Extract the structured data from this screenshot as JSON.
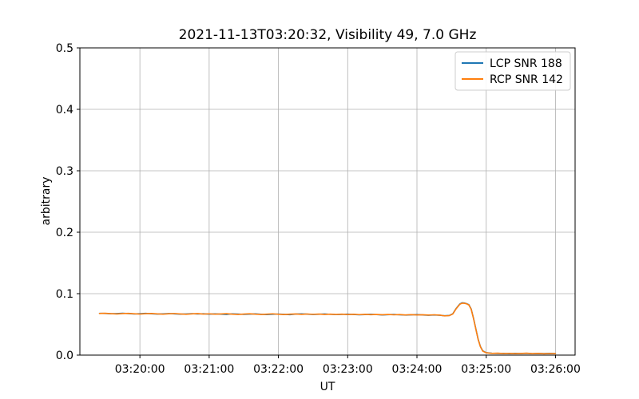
{
  "chart_data": {
    "type": "line",
    "title": "2021-11-13T03:20:32, Visibility 49, 7.0 GHz",
    "xlabel": "UT",
    "ylabel": "arbitrary",
    "ylim": [
      0.0,
      0.5
    ],
    "y_ticks": [
      {
        "v": 0.0,
        "label": "0.0"
      },
      {
        "v": 0.1,
        "label": "0.1"
      },
      {
        "v": 0.2,
        "label": "0.2"
      },
      {
        "v": 0.3,
        "label": "0.3"
      },
      {
        "v": 0.4,
        "label": "0.4"
      },
      {
        "v": 0.5,
        "label": "0.5"
      }
    ],
    "x_time_unit": "seconds since 03:20:00 UT",
    "xlim_seconds": [
      -52,
      377
    ],
    "x_ticks": [
      {
        "t": 0,
        "label": "03:20:00"
      },
      {
        "t": 60,
        "label": "03:21:00"
      },
      {
        "t": 120,
        "label": "03:22:00"
      },
      {
        "t": 180,
        "label": "03:23:00"
      },
      {
        "t": 240,
        "label": "03:24:00"
      },
      {
        "t": 300,
        "label": "03:25:00"
      },
      {
        "t": 360,
        "label": "03:26:00"
      }
    ],
    "grid": true,
    "legend_position": "upper right",
    "legend": {
      "entries": [
        {
          "label": "LCP SNR 188",
          "color": "#1f77b4"
        },
        {
          "label": "RCP SNR 142",
          "color": "#ff7f0e"
        }
      ]
    },
    "colors": {
      "grid": "#b0b0b0",
      "spine": "#000000",
      "background": "#ffffff",
      "lcp": "#1f77b4",
      "rcp": "#ff7f0e"
    },
    "x": [
      -35,
      -30,
      -25,
      -20,
      -15,
      -10,
      -5,
      0,
      5,
      10,
      15,
      20,
      25,
      30,
      35,
      40,
      45,
      50,
      55,
      60,
      65,
      70,
      75,
      80,
      85,
      90,
      95,
      100,
      105,
      110,
      115,
      120,
      125,
      130,
      135,
      140,
      145,
      150,
      155,
      160,
      165,
      170,
      175,
      180,
      185,
      190,
      195,
      200,
      205,
      210,
      215,
      220,
      225,
      230,
      235,
      240,
      245,
      250,
      255,
      260,
      264,
      268,
      271,
      274,
      277,
      279,
      281,
      283,
      285,
      287,
      289,
      291,
      293,
      295,
      297,
      300,
      305,
      310,
      315,
      320,
      325,
      330,
      335,
      340,
      345,
      350,
      355,
      360
    ],
    "series": [
      {
        "name": "LCP SNR 188",
        "color": "#1f77b4",
        "y": [
          0.068,
          0.0678,
          0.0673,
          0.0677,
          0.0682,
          0.0676,
          0.067,
          0.0675,
          0.0679,
          0.0673,
          0.0668,
          0.0672,
          0.0677,
          0.0671,
          0.0666,
          0.067,
          0.0675,
          0.0669,
          0.0673,
          0.0667,
          0.0671,
          0.0666,
          0.0661,
          0.0672,
          0.0668,
          0.0663,
          0.0667,
          0.0671,
          0.0665,
          0.066,
          0.0664,
          0.0669,
          0.0663,
          0.0658,
          0.0668,
          0.0672,
          0.0666,
          0.0661,
          0.0665,
          0.067,
          0.0664,
          0.0659,
          0.0663,
          0.0667,
          0.0661,
          0.0656,
          0.066,
          0.0665,
          0.0659,
          0.0654,
          0.0658,
          0.0662,
          0.0656,
          0.0651,
          0.0655,
          0.066,
          0.0654,
          0.0649,
          0.0653,
          0.0648,
          0.064,
          0.0645,
          0.0672,
          0.076,
          0.083,
          0.0852,
          0.0848,
          0.0838,
          0.082,
          0.075,
          0.06,
          0.043,
          0.026,
          0.014,
          0.007,
          0.004,
          0.003,
          0.0026,
          0.0029,
          0.0024,
          0.0028,
          0.0025,
          0.0029,
          0.0023,
          0.0027,
          0.0025,
          0.0028,
          0.0025
        ]
      },
      {
        "name": "RCP SNR 142",
        "color": "#ff7f0e",
        "y": [
          0.0678,
          0.0681,
          0.0675,
          0.067,
          0.0676,
          0.068,
          0.0673,
          0.0668,
          0.0674,
          0.0678,
          0.0671,
          0.0667,
          0.0673,
          0.0677,
          0.067,
          0.0665,
          0.0671,
          0.0676,
          0.0668,
          0.0672,
          0.0666,
          0.067,
          0.0674,
          0.0667,
          0.0662,
          0.0668,
          0.0673,
          0.0666,
          0.0661,
          0.0667,
          0.0672,
          0.0665,
          0.066,
          0.0666,
          0.067,
          0.0663,
          0.0669,
          0.0664,
          0.0668,
          0.0662,
          0.0667,
          0.0662,
          0.0666,
          0.066,
          0.0665,
          0.0659,
          0.0663,
          0.0658,
          0.0662,
          0.0657,
          0.0661,
          0.0656,
          0.066,
          0.0654,
          0.0658,
          0.0653,
          0.0657,
          0.0652,
          0.0656,
          0.065,
          0.0638,
          0.0643,
          0.0668,
          0.0755,
          0.0825,
          0.0845,
          0.0843,
          0.0835,
          0.0815,
          0.0745,
          0.0595,
          0.0425,
          0.0255,
          0.0135,
          0.0065,
          0.0038,
          0.0028,
          0.0031,
          0.0025,
          0.0029,
          0.0023,
          0.0027,
          0.0031,
          0.0024,
          0.0028,
          0.0022,
          0.0026,
          0.0024
        ]
      }
    ]
  }
}
